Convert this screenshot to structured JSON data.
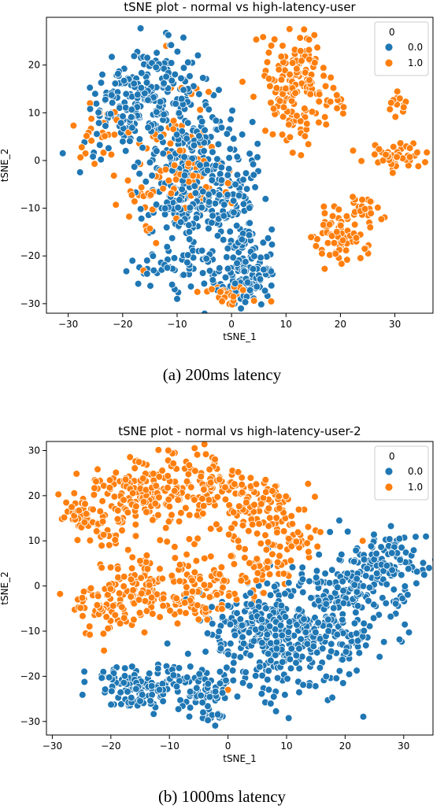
{
  "chart_data": [
    {
      "type": "scatter",
      "title": "tSNE plot - normal vs high-latency-user",
      "xlabel": "tSNE_1",
      "ylabel": "tSNE_2",
      "xlim": [
        -34,
        37
      ],
      "ylim": [
        -32,
        30
      ],
      "xticks": [
        -30,
        -20,
        -10,
        0,
        10,
        20,
        30
      ],
      "yticks": [
        -30,
        -20,
        -10,
        0,
        10,
        20
      ],
      "xtick_labels": [
        "−30",
        "−20",
        "−10",
        "0",
        "10",
        "20",
        "30"
      ],
      "ytick_labels": [
        "−30",
        "−20",
        "−10",
        "0",
        "10",
        "20"
      ],
      "grid": false,
      "legend": {
        "title": "0",
        "placement": "top-right"
      },
      "series": [
        {
          "name": "0.0",
          "color": "#1f77b4",
          "clusters": [
            {
              "cx": -14,
              "cy": 14,
              "sx": 5,
              "sy": 5,
              "n": 190
            },
            {
              "cx": -21,
              "cy": 9,
              "sx": 3.5,
              "sy": 4,
              "n": 60
            },
            {
              "cx": -6,
              "cy": 0,
              "sx": 5,
              "sy": 5,
              "n": 170
            },
            {
              "cx": -8,
              "cy": -10,
              "sx": 4,
              "sy": 3,
              "n": 90
            },
            {
              "cx": 1,
              "cy": -12,
              "sx": 3,
              "sy": 6,
              "n": 80
            },
            {
              "cx": 3,
              "cy": -24,
              "sx": 2.5,
              "sy": 3,
              "n": 110
            },
            {
              "cx": -6,
              "cy": -22,
              "sx": 4,
              "sy": 3,
              "n": 50
            },
            {
              "cx": -15,
              "cy": -22,
              "sx": 3,
              "sy": 2,
              "n": 15
            }
          ],
          "points": [
            [
              -31,
              1.5
            ],
            [
              -10,
              -29
            ]
          ]
        },
        {
          "name": "1.0",
          "color": "#ff7f0e",
          "clusters": [
            {
              "cx": 12,
              "cy": 16,
              "sx": 2.5,
              "sy": 6,
              "n": 160
            },
            {
              "cx": 19,
              "cy": 12,
              "sx": 1.2,
              "sy": 2,
              "n": 14
            },
            {
              "cx": 30.5,
              "cy": 11.5,
              "sx": 0.8,
              "sy": 1.2,
              "n": 14
            },
            {
              "cx": 30.5,
              "cy": 1,
              "sx": 3,
              "sy": 1.2,
              "n": 50
            },
            {
              "cx": 20,
              "cy": -16,
              "sx": 2.5,
              "sy": 3,
              "n": 70
            },
            {
              "cx": 25,
              "cy": -11,
              "sx": 1.2,
              "sy": 2,
              "n": 20
            },
            {
              "cx": -7,
              "cy": -5,
              "sx": 4,
              "sy": 3,
              "n": 45
            },
            {
              "cx": 0,
              "cy": -28,
              "sx": 3,
              "sy": 1,
              "n": 35
            },
            {
              "cx": -12,
              "cy": 5,
              "sx": 5,
              "sy": 6,
              "n": 45
            },
            {
              "cx": -17,
              "cy": -7,
              "sx": 3,
              "sy": 5,
              "n": 25
            },
            {
              "cx": -25,
              "cy": 6,
              "sx": 2,
              "sy": 4,
              "n": 20
            }
          ],
          "points": [
            [
              2,
              16.5
            ],
            [
              -12,
              24
            ],
            [
              -26,
              12
            ]
          ]
        }
      ]
    },
    {
      "type": "scatter",
      "title": "tSNE plot - normal vs high-latency-user-2",
      "xlabel": "tSNE_1",
      "ylabel": "tSNE_2",
      "xlim": [
        -31,
        35
      ],
      "ylim": [
        -33,
        32
      ],
      "xticks": [
        -30,
        -20,
        -10,
        0,
        10,
        20,
        30
      ],
      "yticks": [
        -30,
        -20,
        -10,
        0,
        10,
        20,
        30
      ],
      "xtick_labels": [
        "−30",
        "−20",
        "−10",
        "0",
        "10",
        "20",
        "30"
      ],
      "ytick_labels": [
        "−30",
        "−20",
        "−10",
        "0",
        "10",
        "20",
        "30"
      ],
      "grid": false,
      "legend": {
        "title": "0",
        "placement": "top-right"
      },
      "series": [
        {
          "name": "0.0",
          "color": "#1f77b4",
          "clusters": [
            {
              "cx": -16,
              "cy": -22,
              "sx": 3.5,
              "sy": 2.5,
              "n": 120
            },
            {
              "cx": -5,
              "cy": -22,
              "sx": 3.5,
              "sy": 3,
              "n": 80
            },
            {
              "cx": 10,
              "cy": -12,
              "sx": 6,
              "sy": 6,
              "n": 330
            },
            {
              "cx": 21,
              "cy": -2,
              "sx": 5,
              "sy": 6,
              "n": 160
            },
            {
              "cx": 27,
              "cy": 5,
              "sx": 3,
              "sy": 3,
              "n": 90
            },
            {
              "cx": 2,
              "cy": -8,
              "sx": 3,
              "sy": 4,
              "n": 50
            },
            {
              "cx": -3,
              "cy": -29.5,
              "sx": 1.5,
              "sy": 1,
              "n": 12
            }
          ],
          "points": [
            [
              33.5,
              2.5
            ],
            [
              19,
              14.5
            ]
          ]
        },
        {
          "name": "1.0",
          "color": "#ff7f0e",
          "clusters": [
            {
              "cx": -16,
              "cy": 20,
              "sx": 5,
              "sy": 4,
              "n": 150
            },
            {
              "cx": -5,
              "cy": 21,
              "sx": 5,
              "sy": 4,
              "n": 130
            },
            {
              "cx": 6,
              "cy": 17,
              "sx": 4,
              "sy": 3.5,
              "n": 90
            },
            {
              "cx": -25,
              "cy": 16,
              "sx": 1.5,
              "sy": 1.5,
              "n": 30
            },
            {
              "cx": -15,
              "cy": -2,
              "sx": 4,
              "sy": 4,
              "n": 110
            },
            {
              "cx": -5,
              "cy": -1,
              "sx": 4,
              "sy": 4,
              "n": 100
            },
            {
              "cx": -22,
              "cy": -5,
              "sx": 2,
              "sy": 3,
              "n": 40
            },
            {
              "cx": 5,
              "cy": 5,
              "sx": 3,
              "sy": 3,
              "n": 50
            },
            {
              "cx": 12,
              "cy": 10,
              "sx": 2,
              "sy": 2,
              "n": 25
            },
            {
              "cx": -21,
              "cy": 10,
              "sx": 2,
              "sy": 2,
              "n": 15
            }
          ],
          "points": [
            [
              23,
              10
            ],
            [
              0,
              -23
            ]
          ]
        }
      ]
    }
  ],
  "captions": {
    "a": "(a) 200ms latency",
    "b": "(b) 1000ms latency"
  }
}
